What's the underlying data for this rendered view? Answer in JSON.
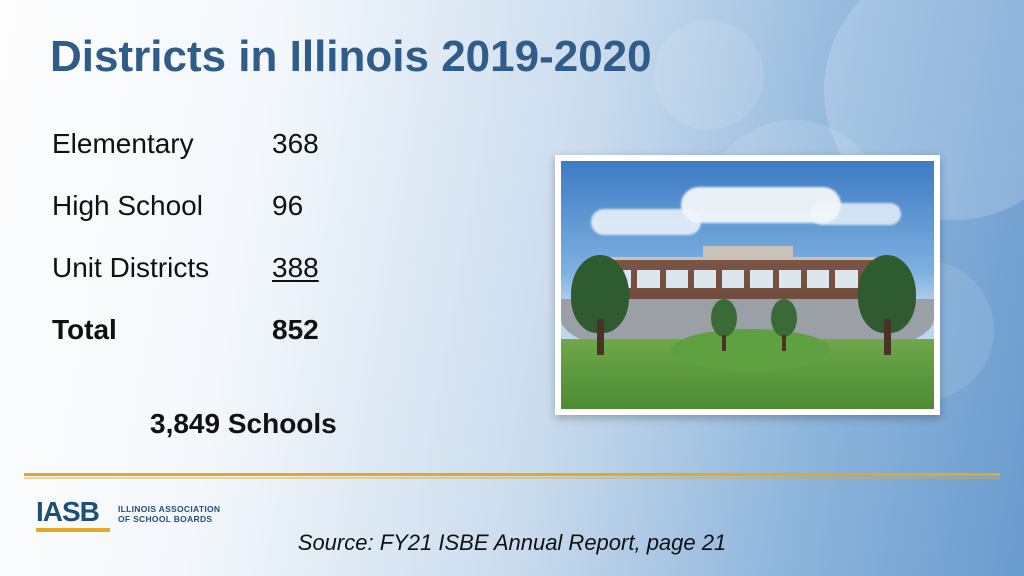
{
  "title": "Districts in Illinois 2019-2020",
  "rows": [
    {
      "label": "Elementary",
      "value": "368",
      "bold": false,
      "underline": false
    },
    {
      "label": "High School",
      "value": "96",
      "bold": false,
      "underline": false
    },
    {
      "label": "Unit Districts",
      "value": "388",
      "bold": false,
      "underline": true
    },
    {
      "label": "Total",
      "value": "852",
      "bold": true,
      "underline": false
    }
  ],
  "schools_line": "3,849 Schools",
  "source": "Source: FY21 ISBE Annual Report, page 21",
  "logo": {
    "mark": "IASB",
    "line1": "ILLINOIS ASSOCIATION",
    "line2": "OF SCHOOL BOARDS"
  },
  "colors": {
    "title": "#2f5c88",
    "accent": "#e6a820",
    "text": "#111111"
  }
}
